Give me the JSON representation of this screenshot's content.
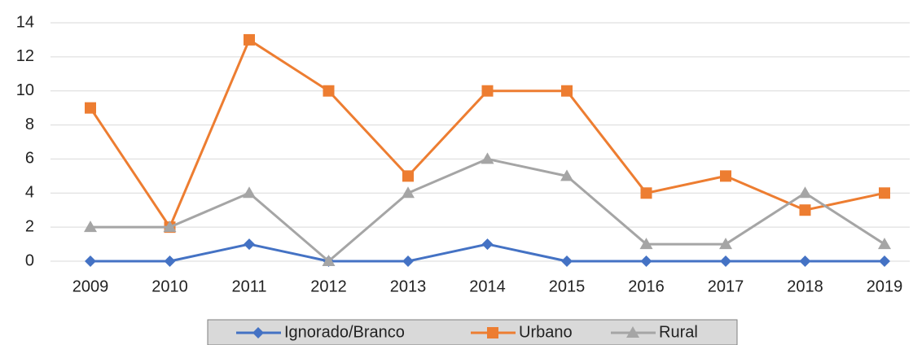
{
  "chart_data": {
    "type": "line",
    "categories": [
      "2009",
      "2010",
      "2011",
      "2012",
      "2013",
      "2014",
      "2015",
      "2016",
      "2017",
      "2018",
      "2019"
    ],
    "series": [
      {
        "name": "Ignorado/Branco",
        "color": "#4472c4",
        "marker": "diamond",
        "values": [
          0,
          0,
          1,
          0,
          0,
          1,
          0,
          0,
          0,
          0,
          0
        ]
      },
      {
        "name": "Urbano",
        "color": "#ed7d31",
        "marker": "square",
        "values": [
          9,
          2,
          13,
          10,
          5,
          10,
          10,
          4,
          5,
          3,
          4
        ]
      },
      {
        "name": "Rural",
        "color": "#a5a5a5",
        "marker": "triangle",
        "values": [
          2,
          2,
          4,
          0,
          4,
          6,
          5,
          1,
          1,
          4,
          1
        ]
      }
    ],
    "ylim": [
      0,
      14
    ],
    "yticks": [
      0,
      2,
      4,
      6,
      8,
      10,
      12,
      14
    ],
    "grid": true,
    "legend": "bottom"
  }
}
